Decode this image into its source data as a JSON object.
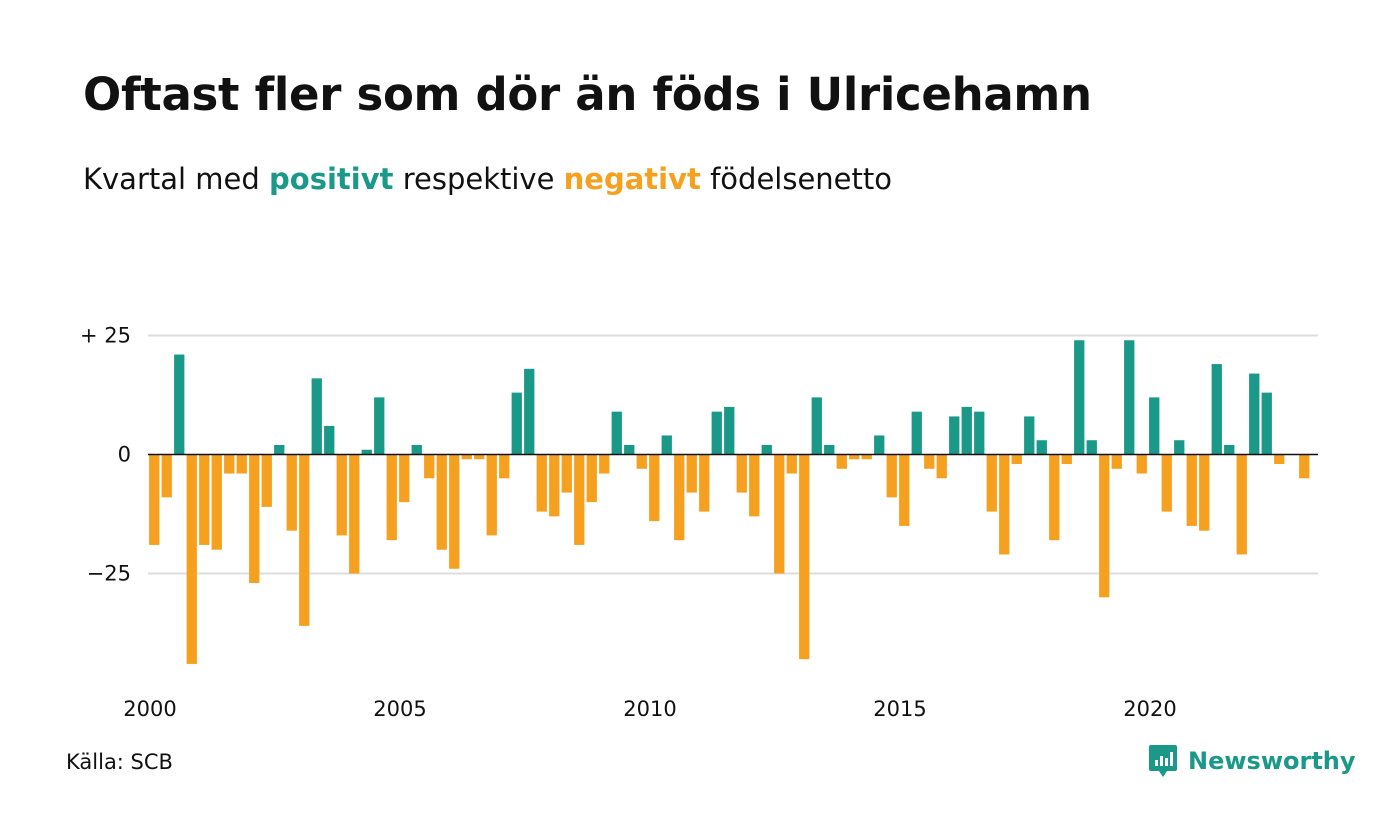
{
  "title": "Oftast fler som dör än föds i Ulricehamn",
  "subtitle": {
    "prefix": "Kvartal med",
    "positive_word": "positivt",
    "middle": "respektive",
    "negative_word": "negativt",
    "suffix": "födelsenetto"
  },
  "source": "Källa: SCB",
  "brand": "Newsworthy",
  "colors": {
    "positive": "#1a9988",
    "negative": "#f5a01f",
    "grid": "#dddddd",
    "axis": "#111111",
    "brand": "#1a9988"
  },
  "chart_data": {
    "type": "bar",
    "xlabel": "",
    "ylabel": "",
    "ylim": [
      -44,
      25
    ],
    "x_start": 2000,
    "x_tick_labels": [
      "2000",
      "2005",
      "2010",
      "2015",
      "2020"
    ],
    "y_ticks": [
      {
        "value": 25,
        "label": "+ 25"
      },
      {
        "value": 0,
        "label": "0"
      },
      {
        "value": -25,
        "label": "−25"
      }
    ],
    "grid": true,
    "legend": "in subtitle",
    "values": [
      -19,
      -9,
      21,
      -44,
      -19,
      -20,
      -4,
      -4,
      -27,
      -11,
      2,
      -16,
      -36,
      16,
      6,
      -17,
      -25,
      1,
      12,
      -18,
      -10,
      2,
      -5,
      -20,
      -24,
      -1,
      -1,
      -17,
      -5,
      13,
      18,
      -12,
      -13,
      -8,
      -19,
      -10,
      -4,
      9,
      2,
      -3,
      -14,
      4,
      -18,
      -8,
      -12,
      9,
      10,
      -8,
      -13,
      2,
      -25,
      -4,
      -43,
      12,
      2,
      -3,
      -1,
      -1,
      4,
      -9,
      -15,
      9,
      -3,
      -5,
      8,
      10,
      9,
      -12,
      -21,
      -2,
      8,
      3,
      -18,
      -2,
      24,
      3,
      -30,
      -3,
      24,
      -4,
      12,
      -12,
      3,
      -15,
      -16,
      19,
      2,
      -21,
      17,
      13,
      -2,
      0,
      -5
    ]
  }
}
